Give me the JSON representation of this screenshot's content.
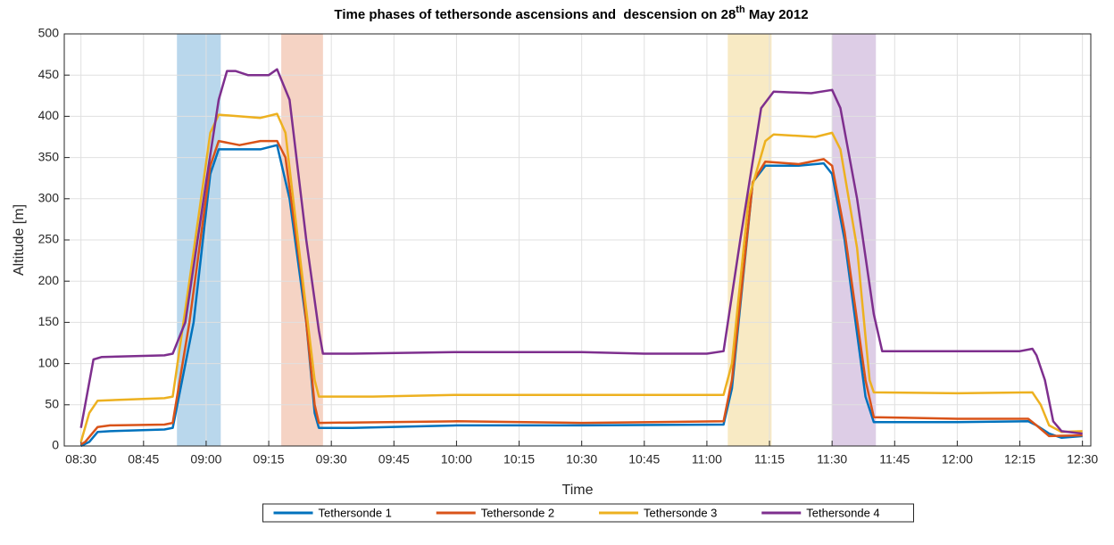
{
  "chart_data": {
    "type": "line",
    "title_parts": [
      "Time phases of tethersonde ascensions and  descension on 28",
      "th",
      " May 2012"
    ],
    "x_label": "Time",
    "y_label": "Altitude [m]",
    "xlim": [
      506,
      752
    ],
    "ylim": [
      0,
      500
    ],
    "xticks": [
      {
        "value": 510,
        "label": "08:30"
      },
      {
        "value": 525,
        "label": "08:45"
      },
      {
        "value": 540,
        "label": "09:00"
      },
      {
        "value": 555,
        "label": "09:15"
      },
      {
        "value": 570,
        "label": "09:30"
      },
      {
        "value": 585,
        "label": "09:45"
      },
      {
        "value": 600,
        "label": "10:00"
      },
      {
        "value": 615,
        "label": "10:15"
      },
      {
        "value": 630,
        "label": "10:30"
      },
      {
        "value": 645,
        "label": "10:45"
      },
      {
        "value": 660,
        "label": "11:00"
      },
      {
        "value": 675,
        "label": "11:15"
      },
      {
        "value": 690,
        "label": "11:30"
      },
      {
        "value": 705,
        "label": "11:45"
      },
      {
        "value": 720,
        "label": "12:00"
      },
      {
        "value": 735,
        "label": "12:15"
      },
      {
        "value": 750,
        "label": "12:30"
      }
    ],
    "yticks": [
      0,
      50,
      100,
      150,
      200,
      250,
      300,
      350,
      400,
      450,
      500
    ],
    "grid": true,
    "legend": "bottom",
    "spans": [
      {
        "x": [
          533,
          543.5
        ],
        "color": "#b9d7ec"
      },
      {
        "x": [
          558,
          568
        ],
        "color": "#f5d3c4"
      },
      {
        "x": [
          665,
          675.5
        ],
        "color": "#f8eac4"
      },
      {
        "x": [
          690,
          700.5
        ],
        "color": "#ddcde6"
      }
    ],
    "series": [
      {
        "name": "Tethersonde 1",
        "color": "#0072bd",
        "x": [
          510,
          512,
          514,
          517,
          530,
          532,
          537,
          541,
          543,
          548,
          553,
          557,
          560,
          564,
          566,
          567,
          575,
          600,
          630,
          664,
          666,
          671,
          674,
          682,
          688,
          690,
          693,
          698,
          700,
          720,
          737,
          739,
          742,
          745,
          750
        ],
        "values": [
          0,
          5,
          17,
          18,
          20,
          22,
          150,
          330,
          360,
          360,
          360,
          365,
          300,
          150,
          40,
          22,
          22,
          25,
          25,
          26,
          70,
          320,
          340,
          340,
          343,
          330,
          250,
          60,
          29,
          29,
          30,
          25,
          15,
          10,
          12
        ]
      },
      {
        "name": "Tethersonde 2",
        "color": "#d95319",
        "x": [
          510,
          511,
          514,
          517,
          530,
          532,
          536,
          541,
          543,
          548,
          553,
          557,
          559,
          563,
          566,
          567,
          600,
          630,
          664,
          666,
          671,
          674,
          682,
          688,
          690,
          693,
          698,
          700,
          720,
          737,
          739,
          742,
          750
        ],
        "values": [
          2,
          5,
          23,
          25,
          26,
          28,
          150,
          340,
          370,
          365,
          370,
          370,
          350,
          200,
          50,
          28,
          30,
          28,
          30,
          80,
          320,
          345,
          342,
          348,
          340,
          260,
          80,
          35,
          33,
          33,
          25,
          12,
          13
        ]
      },
      {
        "name": "Tethersonde 3",
        "color": "#edb120",
        "x": [
          510,
          512,
          514,
          530,
          532,
          536,
          541,
          543,
          548,
          553,
          557,
          559,
          562,
          566,
          567,
          580,
          600,
          630,
          645,
          664,
          666,
          670,
          674,
          676,
          686,
          690,
          692,
          696,
          699,
          700,
          720,
          738,
          740,
          742,
          745,
          750
        ],
        "values": [
          5,
          40,
          55,
          58,
          60,
          200,
          380,
          402,
          400,
          398,
          403,
          380,
          250,
          80,
          60,
          60,
          62,
          62,
          62,
          62,
          100,
          300,
          370,
          378,
          375,
          380,
          360,
          240,
          80,
          65,
          64,
          65,
          50,
          25,
          17,
          18
        ]
      },
      {
        "name": "Tethersonde 4",
        "color": "#7e2f8e",
        "x": [
          510,
          513,
          515,
          530,
          532,
          535,
          540,
          543,
          545,
          547,
          550,
          555,
          557,
          560,
          564,
          567,
          568,
          575,
          600,
          630,
          645,
          660,
          664,
          668,
          673,
          676,
          685,
          690,
          692,
          696,
          700,
          702,
          720,
          735,
          738,
          739,
          741,
          743,
          745,
          750
        ],
        "values": [
          22,
          105,
          108,
          110,
          112,
          150,
          320,
          420,
          455,
          455,
          450,
          450,
          457,
          420,
          250,
          140,
          112,
          112,
          114,
          114,
          112,
          112,
          115,
          250,
          410,
          430,
          428,
          432,
          410,
          300,
          160,
          115,
          115,
          115,
          118,
          110,
          80,
          30,
          18,
          15
        ]
      }
    ]
  }
}
